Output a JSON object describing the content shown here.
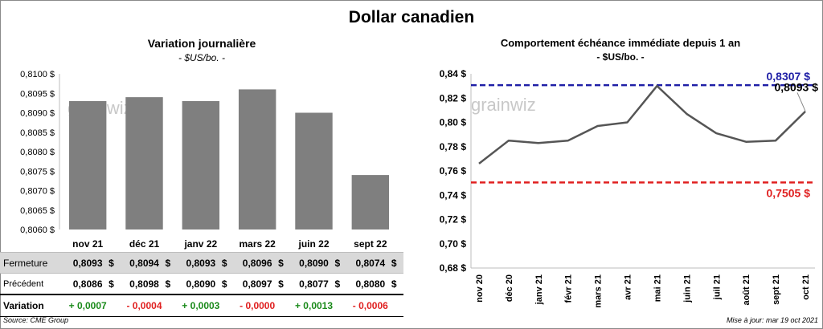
{
  "title": "Dollar canadien",
  "left": {
    "title": "Variation  journalière",
    "unit": "- $US/bo. -",
    "row_labels": {
      "close": "Fermeture",
      "prev": "Précédent",
      "var": "Variation"
    },
    "close": [
      "0,8093",
      "0,8094",
      "0,8093",
      "0,8096",
      "0,8090",
      "0,8074"
    ],
    "prev": [
      "0,8086",
      "0,8098",
      "0,8090",
      "0,8097",
      "0,8077",
      "0,8080"
    ],
    "var": [
      "+ 0,0007",
      "- 0,0004",
      "+ 0,0003",
      "- 0,0000",
      "+ 0,0013",
      "- 0,0006"
    ],
    "currency": "$"
  },
  "right": {
    "title": "Comportement échéance immédiate depuis 1 an",
    "unit": "- $US/bo. -",
    "high_label": "0,8307 $",
    "low_label": "0,7505 $",
    "last_label": "0,8093 $"
  },
  "watermark": "grainwiz",
  "source": "Source: CME Group",
  "update": "Mise à jour: mar 19 oct 2021",
  "colors": {
    "bar": "#7f7f7f",
    "line": "#555555",
    "high": "#1f1fa6",
    "low": "#e02020",
    "pos": "#1a8a1a",
    "neg": "#e02020",
    "row_shade": "#d9d9d9"
  },
  "chart_data": [
    {
      "type": "bar",
      "categories": [
        "nov 21",
        "déc 21",
        "janv 22",
        "mars 22",
        "juin 22",
        "sept 22"
      ],
      "values": [
        0.8093,
        0.8094,
        0.8093,
        0.8096,
        0.809,
        0.8074
      ],
      "ylim": [
        0.806,
        0.81
      ],
      "yticks": [
        "0,8060 $",
        "0,8065 $",
        "0,8070 $",
        "0,8075 $",
        "0,8080 $",
        "0,8085 $",
        "0,8090 $",
        "0,8095 $",
        "0,8100 $"
      ],
      "grid": false
    },
    {
      "type": "line",
      "x": [
        "nov 20",
        "déc 20",
        "janv 21",
        "févr 21",
        "mars 21",
        "avr 21",
        "mai 21",
        "juin 21",
        "juil 21",
        "août 21",
        "sept 21",
        "oct 21"
      ],
      "y": [
        0.766,
        0.785,
        0.783,
        0.785,
        0.797,
        0.8,
        0.83,
        0.807,
        0.791,
        0.784,
        0.785,
        0.809
      ],
      "ylim": [
        0.68,
        0.84
      ],
      "yticks": [
        "0,68 $",
        "0,70 $",
        "0,72 $",
        "0,74 $",
        "0,76 $",
        "0,78 $",
        "0,80 $",
        "0,82 $",
        "0,84 $"
      ],
      "reference_lines": [
        {
          "label": "0,8307 $",
          "value": 0.8307
        },
        {
          "label": "0,7505 $",
          "value": 0.7505
        }
      ],
      "last_value": 0.8093,
      "grid": false
    }
  ]
}
